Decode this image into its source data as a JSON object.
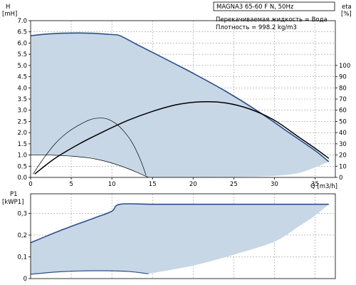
{
  "chart_data": [
    {
      "type": "line",
      "title": "MAGNA3 65-60 F N, 50Hz",
      "notes": [
        "Перекачиваемая жидкость = Вода",
        "Плотность = 998.2 kg/m3"
      ],
      "ylabel": "H",
      "yunit": "[mH]",
      "y2label": "eta",
      "y2unit": "[%]",
      "xlabel": "Q [m3/h]",
      "xlim": [
        0,
        37.5
      ],
      "ylim": [
        0,
        7.0
      ],
      "y2lim": [
        0,
        140
      ],
      "xticks": [
        "0",
        "5",
        "10",
        "15",
        "20",
        "25",
        "30",
        "35"
      ],
      "yticks": [
        "0.0",
        "0.5",
        "1.0",
        "1.5",
        "2.0",
        "2.5",
        "3.0",
        "3.5",
        "4.0",
        "4.5",
        "5.0",
        "5.5",
        "6.0",
        "6.5",
        "7.0"
      ],
      "y2ticks": [
        "0",
        "10",
        "20",
        "30",
        "40",
        "50",
        "60",
        "70",
        "80",
        "90",
        "100"
      ],
      "grid": true,
      "colors": {
        "max_curve": "#2a4f8a",
        "efficiency": "#000000",
        "area_fill": "#c8d7e6"
      },
      "series": [
        {
          "role": "max-head-curve",
          "x": [
            0,
            2,
            4,
            6,
            8,
            10,
            11,
            13,
            16,
            20,
            24,
            28,
            32,
            35,
            36.7
          ],
          "y": [
            6.33,
            6.4,
            6.44,
            6.45,
            6.43,
            6.38,
            6.33,
            5.95,
            5.4,
            4.65,
            3.85,
            2.95,
            1.95,
            1.2,
            0.7
          ]
        },
        {
          "role": "min-head-curve",
          "x": [
            0,
            1,
            2,
            3,
            4,
            5,
            6,
            7,
            8,
            9,
            10,
            11,
            12,
            13,
            14,
            14.5
          ],
          "y": [
            1.0,
            1.0,
            1.0,
            0.99,
            0.97,
            0.95,
            0.92,
            0.88,
            0.82,
            0.74,
            0.64,
            0.52,
            0.39,
            0.24,
            0.08,
            0.0
          ]
        },
        {
          "role": "lower-boundary",
          "x": [
            14.5,
            20,
            25,
            30,
            33,
            35,
            36.7
          ],
          "y": [
            0.0,
            0.0,
            0.02,
            0.07,
            0.2,
            0.45,
            0.7
          ]
        },
        {
          "role": "efficiency-max",
          "x": [
            0.5,
            3,
            6,
            9,
            12,
            15,
            18,
            21,
            24,
            27,
            30,
            33,
            35,
            36.7
          ],
          "y": [
            3,
            17,
            30,
            41,
            51,
            59,
            65,
            67.5,
            66.5,
            61,
            51,
            36,
            26,
            17
          ]
        },
        {
          "role": "efficiency-min",
          "x": [
            0.3,
            1.5,
            3,
            4.5,
            6,
            7.5,
            8.7,
            9.5,
            10.5,
            11.5,
            12.5,
            13.5,
            14.2
          ],
          "y": [
            3,
            16,
            30,
            40,
            47,
            52,
            53,
            52,
            48,
            41,
            31,
            16,
            2
          ]
        }
      ]
    },
    {
      "type": "area",
      "ylabel": "P1",
      "yunit": "[kWP1]",
      "xlim": [
        0,
        37.5
      ],
      "ylim": [
        0,
        0.39
      ],
      "yticks": [
        "0",
        "0,1",
        "0,2",
        "0,3"
      ],
      "grid": true,
      "colors": {
        "max_curve": "#2a4f8a",
        "area_fill": "#c8d7e6"
      },
      "series": [
        {
          "role": "power-max",
          "x": [
            0,
            2,
            4,
            6,
            8,
            10,
            11,
            15,
            20,
            25,
            30,
            35,
            36.7
          ],
          "y": [
            0.165,
            0.196,
            0.226,
            0.254,
            0.281,
            0.31,
            0.342,
            0.342,
            0.342,
            0.342,
            0.342,
            0.342,
            0.342
          ]
        },
        {
          "role": "power-min",
          "x": [
            0,
            3,
            6,
            9,
            12,
            14.5
          ],
          "y": [
            0.02,
            0.03,
            0.035,
            0.036,
            0.033,
            0.022
          ]
        },
        {
          "role": "power-lower-boundary",
          "x": [
            14.5,
            20,
            25,
            30,
            33,
            35,
            36.7
          ],
          "y": [
            0.022,
            0.06,
            0.11,
            0.17,
            0.24,
            0.29,
            0.342
          ]
        }
      ]
    }
  ]
}
